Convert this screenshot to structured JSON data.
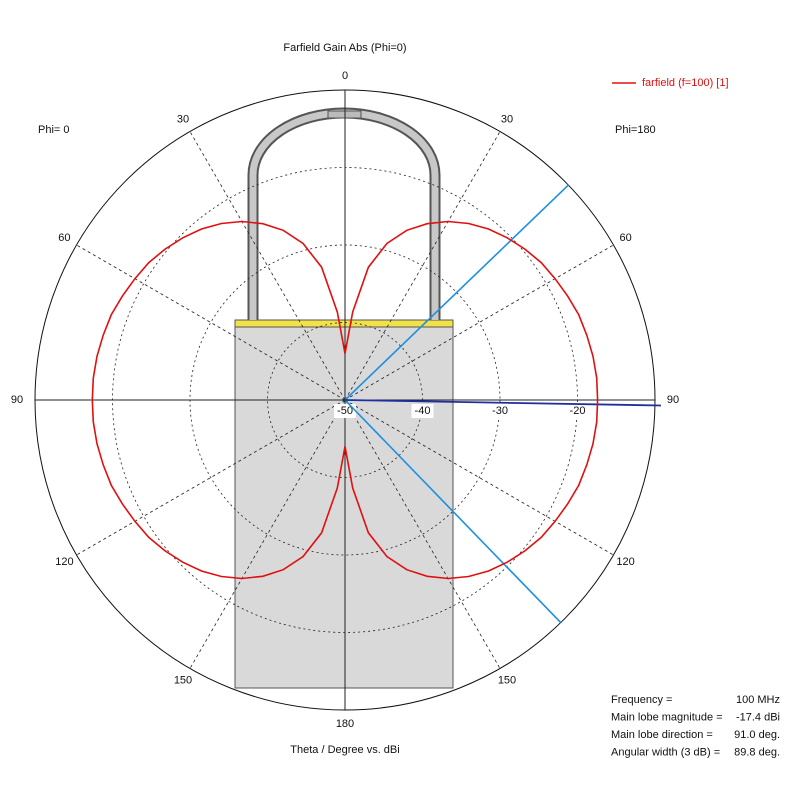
{
  "chart_data": {
    "type": "polar",
    "title": "Farfield Gain Abs (Phi=0)",
    "xlabel": "Theta / Degree vs. dBi",
    "left_label": "Phi= 0",
    "right_label": "Phi=180",
    "theta": [
      0,
      5,
      10,
      15,
      20,
      25,
      30,
      35,
      40,
      45,
      50,
      55,
      60,
      65,
      70,
      75,
      80,
      85,
      90,
      95,
      100,
      105,
      110,
      115,
      120,
      125,
      130,
      135,
      140,
      145,
      150,
      155,
      160,
      165,
      170,
      175,
      180
    ],
    "series": [
      {
        "name": "farfield (f=100) [1]",
        "color": "#e01010",
        "values": [
          -44,
          -38.6,
          -32.6,
          -29.1,
          -26.7,
          -24.9,
          -23.4,
          -22.2,
          -21.2,
          -20.4,
          -19.7,
          -19.1,
          -18.7,
          -18.3,
          -17.9,
          -17.7,
          -17.5,
          -17.4,
          -17.4,
          -17.4,
          -17.5,
          -17.7,
          -17.9,
          -18.3,
          -18.7,
          -19.1,
          -19.7,
          -20.4,
          -21.2,
          -22.2,
          -23.4,
          -24.9,
          -26.7,
          -29.1,
          -32.6,
          -38.6,
          -44
        ]
      }
    ],
    "rlim": [
      -50,
      -10
    ],
    "rticks": [
      -50,
      -40,
      -30,
      -20
    ],
    "thetaticks": [
      0,
      30,
      60,
      90,
      120,
      150,
      180
    ],
    "grid": true,
    "legend": "upper right",
    "main_lobe_color": "#1f2fa0",
    "beamwidth_color": "#1e8fe0",
    "annotations": [
      {
        "label": "Frequency =",
        "value": 100,
        "value_label": "100 MHz"
      },
      {
        "label": "Main lobe magnitude =",
        "value": -17.4,
        "value_label": "-17.4 dBi"
      },
      {
        "label": "Main lobe direction =",
        "value": 91.0,
        "value_label": "91.0 deg."
      },
      {
        "label": "Angular width (3 dB) =",
        "value": 89.8,
        "value_label": "89.8 deg."
      }
    ]
  }
}
